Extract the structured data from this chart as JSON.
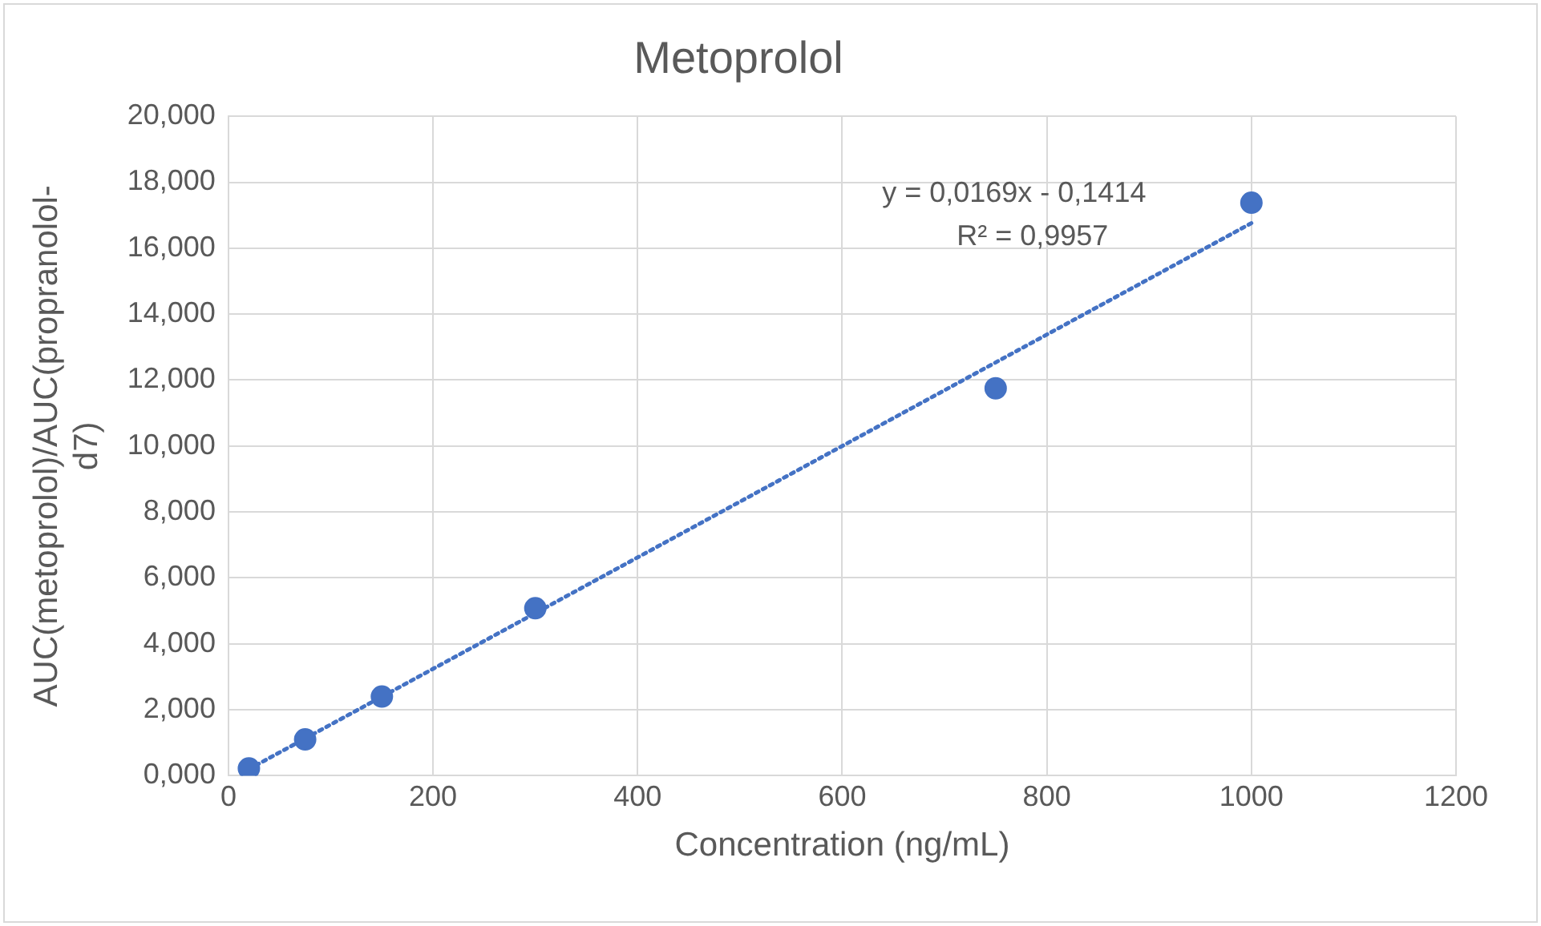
{
  "chart_data": {
    "type": "scatter",
    "title": "Metoprolol",
    "xlabel": "Concentration (ng/mL)",
    "ylabel": "AUC(metoprolol)/AUC(propranolol-d7)",
    "series": [
      {
        "type": "scatter",
        "color": "#4472c4",
        "x": [
          20,
          75,
          150,
          300,
          750,
          1000
        ],
        "values": [
          0.22,
          1.1,
          2.4,
          5.08,
          11.75,
          17.38
        ],
        "marker": "circle"
      },
      {
        "type": "line",
        "color": "#4472c4",
        "x": [
          20,
          1000
        ],
        "values": [
          0.2,
          16.76
        ],
        "line_style": "dotted",
        "marker": "none"
      }
    ],
    "xlim": [
      0,
      1200
    ],
    "xticks": [
      0,
      200,
      400,
      600,
      800,
      1000,
      1200
    ],
    "ylim": [
      0,
      20
    ],
    "yticks": [
      {
        "value": 0,
        "label": "0,000"
      },
      {
        "value": 2,
        "label": "2,000"
      },
      {
        "value": 4,
        "label": "4,000"
      },
      {
        "value": 6,
        "label": "6,000"
      },
      {
        "value": 8,
        "label": "8,000"
      },
      {
        "value": 10,
        "label": "10,000"
      },
      {
        "value": 12,
        "label": "12,000"
      },
      {
        "value": 14,
        "label": "14,000"
      },
      {
        "value": 16,
        "label": "16,000"
      },
      {
        "value": 18,
        "label": "18,000"
      },
      {
        "value": 20,
        "label": "20,000"
      }
    ],
    "annotations": [
      "y = 0,0169x - 0,1414",
      "R² = 0,9957"
    ],
    "grid": true,
    "legend": false
  }
}
